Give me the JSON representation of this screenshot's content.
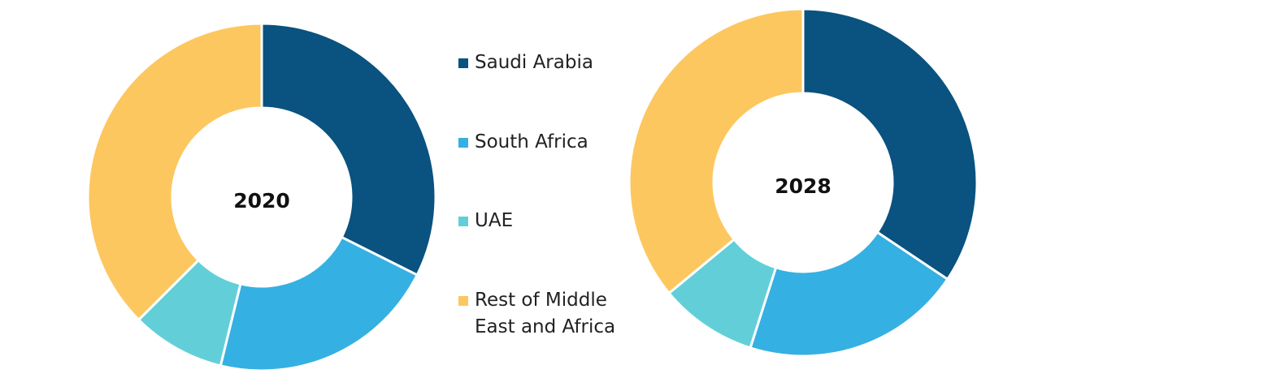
{
  "chart_data": [
    {
      "type": "donut",
      "title": "2020",
      "values": [
        32.4,
        21.4,
        8.7,
        37.5
      ]
    },
    {
      "type": "donut",
      "title": "2028",
      "values": [
        34.4,
        20.5,
        9.1,
        36.0
      ]
    }
  ],
  "legend": {
    "labels": [
      "Saudi Arabia",
      "South Africa",
      "UAE",
      "Rest of Middle East and Africa"
    ],
    "colors": [
      "#0a527f",
      "#35b0e2",
      "#62cfd8",
      "#fdc75f"
    ]
  }
}
